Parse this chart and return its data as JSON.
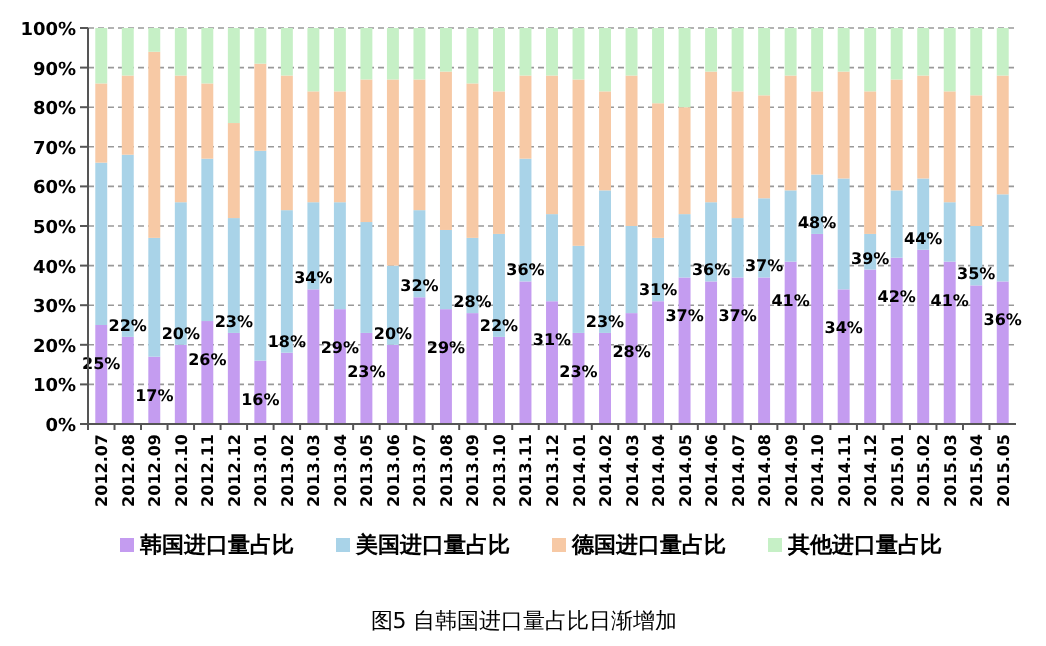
{
  "chart_data": {
    "type": "bar",
    "stacked": true,
    "categories": [
      "2012.07",
      "2012.08",
      "2012.09",
      "2012.10",
      "2012.11",
      "2012.12",
      "2013.01",
      "2013.02",
      "2013.03",
      "2013.04",
      "2013.05",
      "2013.06",
      "2013.07",
      "2013.08",
      "2013.09",
      "2013.10",
      "2013.11",
      "2013.12",
      "2014.01",
      "2014.02",
      "2014.03",
      "2014.04",
      "2014.05",
      "2014.06",
      "2014.07",
      "2014.08",
      "2014.09",
      "2014.10",
      "2014.11",
      "2014.12",
      "2015.01",
      "2015.02",
      "2015.03",
      "2015.04",
      "2015.05"
    ],
    "series": [
      {
        "name": "韩国进口量占比",
        "color": "#c49cf0",
        "values": [
          25,
          22,
          17,
          20,
          26,
          23,
          16,
          18,
          34,
          29,
          23,
          20,
          32,
          29,
          28,
          22,
          36,
          31,
          23,
          23,
          28,
          31,
          37,
          36,
          37,
          37,
          41,
          48,
          34,
          39,
          42,
          44,
          41,
          35,
          36
        ],
        "value_labels": [
          "25%",
          "22%",
          "17%",
          "20%",
          "26%",
          "23%",
          "16%",
          "18%",
          "34%",
          "29%",
          "23%",
          "20%",
          "32%",
          "29%",
          "28%",
          "22%",
          "36%",
          "31%",
          "23%",
          "23%",
          "28%",
          "31%",
          "37%",
          "36%",
          "37%",
          "37%",
          "41%",
          "48%",
          "34%",
          "39%",
          "42%",
          "44%",
          "41%",
          "35%",
          "36%"
        ]
      },
      {
        "name": "美国进口量占比",
        "color": "#a9d3e8",
        "values": [
          41,
          46,
          30,
          36,
          41,
          29,
          53,
          36,
          22,
          27,
          28,
          20,
          22,
          20,
          19,
          26,
          31,
          22,
          22,
          36,
          22,
          16,
          16,
          20,
          15,
          20,
          18,
          15,
          28,
          9,
          17,
          18,
          15,
          15,
          22
        ]
      },
      {
        "name": "德国进口量占比",
        "color": "#f7c9a5",
        "values": [
          20,
          20,
          47,
          32,
          19,
          24,
          22,
          34,
          28,
          28,
          36,
          47,
          33,
          40,
          39,
          36,
          21,
          35,
          42,
          25,
          38,
          34,
          27,
          33,
          32,
          26,
          29,
          21,
          27,
          36,
          28,
          26,
          28,
          33,
          30
        ]
      },
      {
        "name": "其他进口量占比",
        "color": "#c6f0c6",
        "values": [
          14,
          12,
          6,
          12,
          14,
          24,
          9,
          12,
          16,
          16,
          13,
          13,
          13,
          11,
          14,
          16,
          12,
          12,
          13,
          16,
          12,
          19,
          20,
          11,
          16,
          17,
          12,
          16,
          11,
          16,
          13,
          12,
          16,
          17,
          12
        ]
      }
    ],
    "ylim": [
      0,
      100
    ],
    "yticks": [
      {
        "value": 0,
        "label": "0%"
      },
      {
        "value": 10,
        "label": "10%"
      },
      {
        "value": 20,
        "label": "20%"
      },
      {
        "value": 30,
        "label": "30%"
      },
      {
        "value": 40,
        "label": "40%"
      },
      {
        "value": 50,
        "label": "50%"
      },
      {
        "value": 60,
        "label": "60%"
      },
      {
        "value": 70,
        "label": "70%"
      },
      {
        "value": 80,
        "label": "80%"
      },
      {
        "value": 90,
        "label": "90%"
      },
      {
        "value": 100,
        "label": "100%"
      }
    ],
    "grid": "y",
    "legend": "bottom",
    "annotations": [
      "图5 自韩国进口量占比日渐增加"
    ]
  }
}
